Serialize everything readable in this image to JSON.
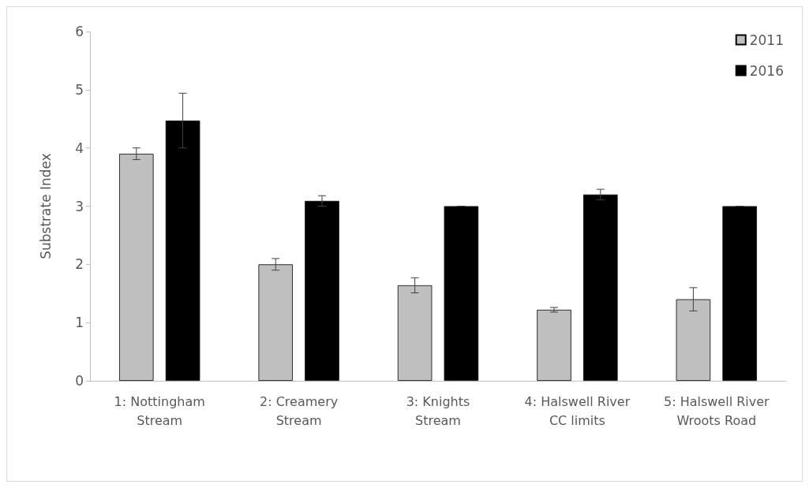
{
  "chart_data": {
    "type": "bar",
    "ylabel": "Substrate Index",
    "categories": [
      "1: Nottingham\nStream",
      "2: Creamery\nStream",
      "3: Knights\nStream",
      "4: Halswell River\nCC limits",
      "5: Halswell River\nWroots Road"
    ],
    "series": [
      {
        "name": "2011",
        "color": "#bfbfbf",
        "values": [
          3.9,
          2.0,
          1.64,
          1.22,
          1.4
        ],
        "errors": [
          0.1,
          0.1,
          0.13,
          0.04,
          0.2
        ]
      },
      {
        "name": "2016",
        "color": "#000000",
        "values": [
          4.47,
          3.09,
          3.0,
          3.2,
          3.0
        ],
        "errors": [
          0.47,
          0.09,
          0,
          0.09,
          0
        ]
      }
    ],
    "ylim": [
      0,
      6
    ],
    "yticks": [
      0,
      1,
      2,
      3,
      4,
      5,
      6
    ],
    "grid": false,
    "legend": "top right"
  }
}
